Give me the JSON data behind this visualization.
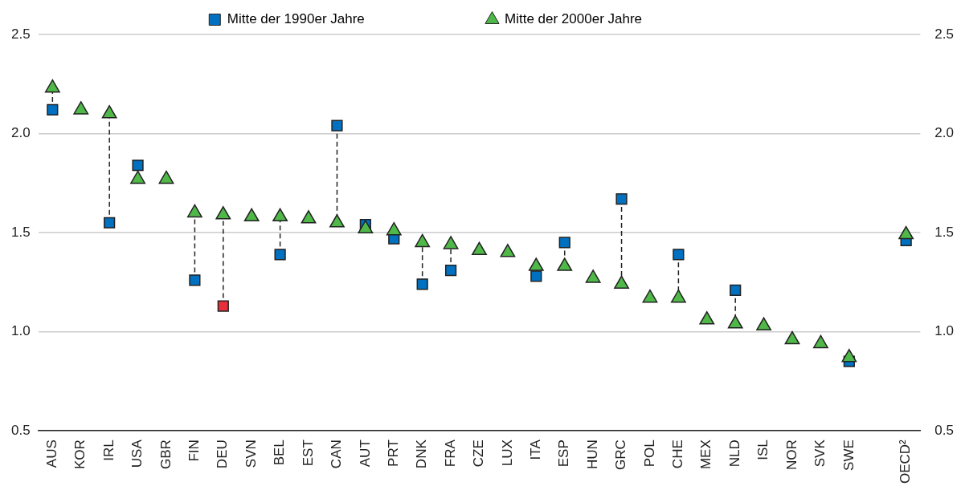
{
  "chart_data": {
    "type": "scatter",
    "categories": [
      "AUS",
      "KOR",
      "IRL",
      "USA",
      "GBR",
      "FIN",
      "DEU",
      "SVN",
      "BEL",
      "EST",
      "CAN",
      "AUT",
      "PRT",
      "DNK",
      "FRA",
      "CZE",
      "LUX",
      "ITA",
      "ESP",
      "HUN",
      "GRC",
      "POL",
      "CHE",
      "MEX",
      "NLD",
      "ISL",
      "NOR",
      "SVK",
      "SWE",
      null,
      "OECD²"
    ],
    "series": [
      {
        "name": "Mitte der 1990er Jahre",
        "color": "#0070c0",
        "marker": "square",
        "colors": [
          "#0070c0",
          "#0070c0",
          "#0070c0",
          "#0070c0",
          "#0070c0",
          "#0070c0",
          "#e8303a",
          "#0070c0",
          "#0070c0",
          "#0070c0",
          "#0070c0",
          "#0070c0",
          "#0070c0",
          "#0070c0",
          "#0070c0",
          "#0070c0",
          "#0070c0",
          "#0070c0",
          "#0070c0",
          "#0070c0",
          "#0070c0",
          "#0070c0",
          "#0070c0",
          "#0070c0",
          "#0070c0",
          "#0070c0",
          "#0070c0",
          "#0070c0",
          "#0070c0",
          "#0070c0",
          "#0070c0"
        ],
        "values": [
          2.12,
          null,
          1.55,
          1.84,
          null,
          1.26,
          1.13,
          null,
          1.39,
          null,
          2.04,
          1.54,
          1.47,
          1.24,
          1.31,
          null,
          null,
          1.28,
          1.45,
          null,
          1.67,
          null,
          1.39,
          null,
          1.21,
          null,
          null,
          null,
          0.85,
          null,
          1.46
        ]
      },
      {
        "name": "Mitte der 2000er Jahre",
        "color": "#4fb848",
        "marker": "triangle",
        "values": [
          2.23,
          2.12,
          2.1,
          1.77,
          1.77,
          1.6,
          1.59,
          1.58,
          1.58,
          1.57,
          1.55,
          1.52,
          1.51,
          1.45,
          1.44,
          1.41,
          1.4,
          1.33,
          1.33,
          1.27,
          1.24,
          1.17,
          1.17,
          1.06,
          1.04,
          1.03,
          0.96,
          0.94,
          0.87,
          null,
          1.49
        ]
      }
    ],
    "ylim": [
      0.5,
      2.5
    ],
    "yticks": [
      {
        "value": 0.5,
        "label": "0.5"
      },
      {
        "value": 1,
        "label": "1.0"
      },
      {
        "value": 1.5,
        "label": "1.5"
      },
      {
        "value": 2,
        "label": "2.0"
      },
      {
        "value": 2.5,
        "label": "2.5"
      }
    ],
    "y2lim": [
      0.5,
      2.5
    ],
    "y2ticks": [
      {
        "value": 0.5,
        "label": "0.5"
      },
      {
        "value": 1,
        "label": "1.0"
      },
      {
        "value": 1.5,
        "label": "1.5"
      },
      {
        "value": 2,
        "label": "2.0"
      },
      {
        "value": 2.5,
        "label": "2.5"
      }
    ],
    "grid": "y",
    "legend": "top"
  }
}
